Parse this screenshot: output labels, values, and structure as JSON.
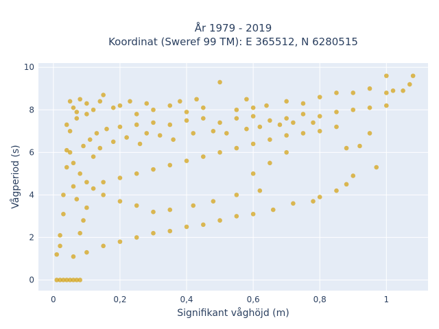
{
  "chart_data": {
    "type": "scatter",
    "title_line1": "År 1979 - 2019",
    "title_line2": "Koordinat (Sweref 99 TM): E 365512, N 6280515",
    "xlabel": "Signifikant våghöjd (m)",
    "ylabel": "Vågperiod (s)",
    "xlim": [
      -0.045,
      1.125
    ],
    "ylim": [
      -0.5,
      10.2
    ],
    "x_ticks": [
      0,
      0.2,
      0.4,
      0.6,
      0.8,
      1
    ],
    "x_tick_labels": [
      "0",
      "0,2",
      "0,4",
      "0,6",
      "0,8",
      "1"
    ],
    "y_ticks": [
      0,
      2,
      4,
      6,
      8,
      10
    ],
    "y_tick_labels": [
      "0",
      "2",
      "4",
      "6",
      "8",
      "10"
    ],
    "grid": true,
    "series": [
      {
        "color": "#d4a419",
        "points": [
          [
            0.01,
            0
          ],
          [
            0.02,
            0
          ],
          [
            0.03,
            0
          ],
          [
            0.04,
            0
          ],
          [
            0.05,
            0
          ],
          [
            0.06,
            0
          ],
          [
            0.07,
            0
          ],
          [
            0.08,
            0
          ],
          [
            0.01,
            1.2
          ],
          [
            0.02,
            1.6
          ],
          [
            0.02,
            2.1
          ],
          [
            0.03,
            3.1
          ],
          [
            0.03,
            4.0
          ],
          [
            0.04,
            5.3
          ],
          [
            0.04,
            6.1
          ],
          [
            0.04,
            7.3
          ],
          [
            0.05,
            8.4
          ],
          [
            0.06,
            8.1
          ],
          [
            0.07,
            7.9
          ],
          [
            0.08,
            8.5
          ],
          [
            0.1,
            8.3
          ],
          [
            0.12,
            8.0
          ],
          [
            0.14,
            8.4
          ],
          [
            0.15,
            8.7
          ],
          [
            0.18,
            8.1
          ],
          [
            0.2,
            8.2
          ],
          [
            0.23,
            8.4
          ],
          [
            0.25,
            7.8
          ],
          [
            0.28,
            8.3
          ],
          [
            0.3,
            8.0
          ],
          [
            0.35,
            8.2
          ],
          [
            0.38,
            8.4
          ],
          [
            0.4,
            7.9
          ],
          [
            0.43,
            8.5
          ],
          [
            0.45,
            8.1
          ],
          [
            0.5,
            9.3
          ],
          [
            0.55,
            8.0
          ],
          [
            0.58,
            8.5
          ],
          [
            0.6,
            8.1
          ],
          [
            0.64,
            8.2
          ],
          [
            0.7,
            8.4
          ],
          [
            0.75,
            8.3
          ],
          [
            0.8,
            8.6
          ],
          [
            0.85,
            8.8
          ],
          [
            0.9,
            8.8
          ],
          [
            0.95,
            9.0
          ],
          [
            1.0,
            8.8
          ],
          [
            1.0,
            9.6
          ],
          [
            1.02,
            8.9
          ],
          [
            1.05,
            8.9
          ],
          [
            1.07,
            9.2
          ],
          [
            1.08,
            9.6
          ],
          [
            0.97,
            5.3
          ],
          [
            0.9,
            4.9
          ],
          [
            0.88,
            4.5
          ],
          [
            0.85,
            4.2
          ],
          [
            0.8,
            3.9
          ],
          [
            0.78,
            3.7
          ],
          [
            0.72,
            3.6
          ],
          [
            0.66,
            3.3
          ],
          [
            0.6,
            3.1
          ],
          [
            0.55,
            3.0
          ],
          [
            0.5,
            2.8
          ],
          [
            0.45,
            2.6
          ],
          [
            0.4,
            2.5
          ],
          [
            0.35,
            2.3
          ],
          [
            0.3,
            2.2
          ],
          [
            0.25,
            2.0
          ],
          [
            0.2,
            1.8
          ],
          [
            0.15,
            1.6
          ],
          [
            0.1,
            1.3
          ],
          [
            0.06,
            1.1
          ],
          [
            0.62,
            4.2
          ],
          [
            0.55,
            4.0
          ],
          [
            0.48,
            3.7
          ],
          [
            0.42,
            3.5
          ],
          [
            0.35,
            3.3
          ],
          [
            0.3,
            3.2
          ],
          [
            0.25,
            3.5
          ],
          [
            0.2,
            3.7
          ],
          [
            0.15,
            4.0
          ],
          [
            0.12,
            4.3
          ],
          [
            0.1,
            4.6
          ],
          [
            0.08,
            5.0
          ],
          [
            0.06,
            5.5
          ],
          [
            0.05,
            6.0
          ],
          [
            0.09,
            6.3
          ],
          [
            0.11,
            6.6
          ],
          [
            0.13,
            6.9
          ],
          [
            0.16,
            7.1
          ],
          [
            0.2,
            7.2
          ],
          [
            0.25,
            7.3
          ],
          [
            0.3,
            7.4
          ],
          [
            0.35,
            7.3
          ],
          [
            0.4,
            7.5
          ],
          [
            0.45,
            7.6
          ],
          [
            0.5,
            7.4
          ],
          [
            0.55,
            7.6
          ],
          [
            0.6,
            7.7
          ],
          [
            0.65,
            7.5
          ],
          [
            0.7,
            7.6
          ],
          [
            0.75,
            7.8
          ],
          [
            0.8,
            7.7
          ],
          [
            0.85,
            7.9
          ],
          [
            0.9,
            8.0
          ],
          [
            0.95,
            8.1
          ],
          [
            1.0,
            8.2
          ],
          [
            0.85,
            7.2
          ],
          [
            0.8,
            7.0
          ],
          [
            0.75,
            6.9
          ],
          [
            0.7,
            6.8
          ],
          [
            0.65,
            6.6
          ],
          [
            0.6,
            6.4
          ],
          [
            0.55,
            6.2
          ],
          [
            0.5,
            6.0
          ],
          [
            0.45,
            5.8
          ],
          [
            0.4,
            5.6
          ],
          [
            0.35,
            5.4
          ],
          [
            0.3,
            5.2
          ],
          [
            0.25,
            5.0
          ],
          [
            0.2,
            4.8
          ],
          [
            0.15,
            4.6
          ],
          [
            0.92,
            6.3
          ],
          [
            0.88,
            6.2
          ],
          [
            0.95,
            6.9
          ],
          [
            0.6,
            5.0
          ],
          [
            0.65,
            5.5
          ],
          [
            0.7,
            6.0
          ],
          [
            0.08,
            2.2
          ],
          [
            0.09,
            2.8
          ],
          [
            0.1,
            3.4
          ],
          [
            0.07,
            3.8
          ],
          [
            0.06,
            4.4
          ],
          [
            0.05,
            7.0
          ],
          [
            0.07,
            7.6
          ],
          [
            0.1,
            7.8
          ],
          [
            0.12,
            5.8
          ],
          [
            0.14,
            6.2
          ],
          [
            0.18,
            6.5
          ],
          [
            0.22,
            6.7
          ],
          [
            0.26,
            6.4
          ],
          [
            0.28,
            6.9
          ],
          [
            0.32,
            6.8
          ],
          [
            0.36,
            6.6
          ],
          [
            0.42,
            6.9
          ],
          [
            0.48,
            7.0
          ],
          [
            0.52,
            6.9
          ],
          [
            0.58,
            7.1
          ],
          [
            0.62,
            7.2
          ],
          [
            0.68,
            7.3
          ],
          [
            0.72,
            7.4
          ],
          [
            0.78,
            7.4
          ]
        ]
      }
    ]
  }
}
